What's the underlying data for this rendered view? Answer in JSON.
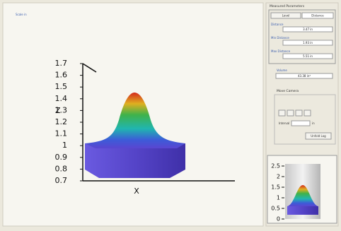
{
  "header": {
    "scale_link": "Scale in"
  },
  "plot": {
    "z_label": "Z",
    "x_label": "X",
    "z_ticks": [
      0.7,
      0.8,
      0.9,
      1,
      1.1,
      1.2,
      1.3,
      1.4,
      1.5,
      1.6,
      1.7
    ]
  },
  "panel": {
    "title": "Measured Parameters",
    "buttons": [
      "Level",
      "Distance"
    ],
    "fields": [
      {
        "label": "Distance",
        "value": "3.47 in"
      },
      {
        "label": "Min Distance",
        "value": "1.93 in"
      },
      {
        "label": "Max Distance",
        "value": "5.51 in"
      }
    ],
    "volume": {
      "label": "Volume",
      "value": "43.38 in³"
    },
    "camera": {
      "title": "Move Camera",
      "interval_label": "Interval",
      "unit": "in",
      "button": "Unfold Log"
    }
  },
  "inset": {
    "ticks": [
      0,
      0.5,
      1,
      1.5,
      2,
      2.5
    ]
  }
}
